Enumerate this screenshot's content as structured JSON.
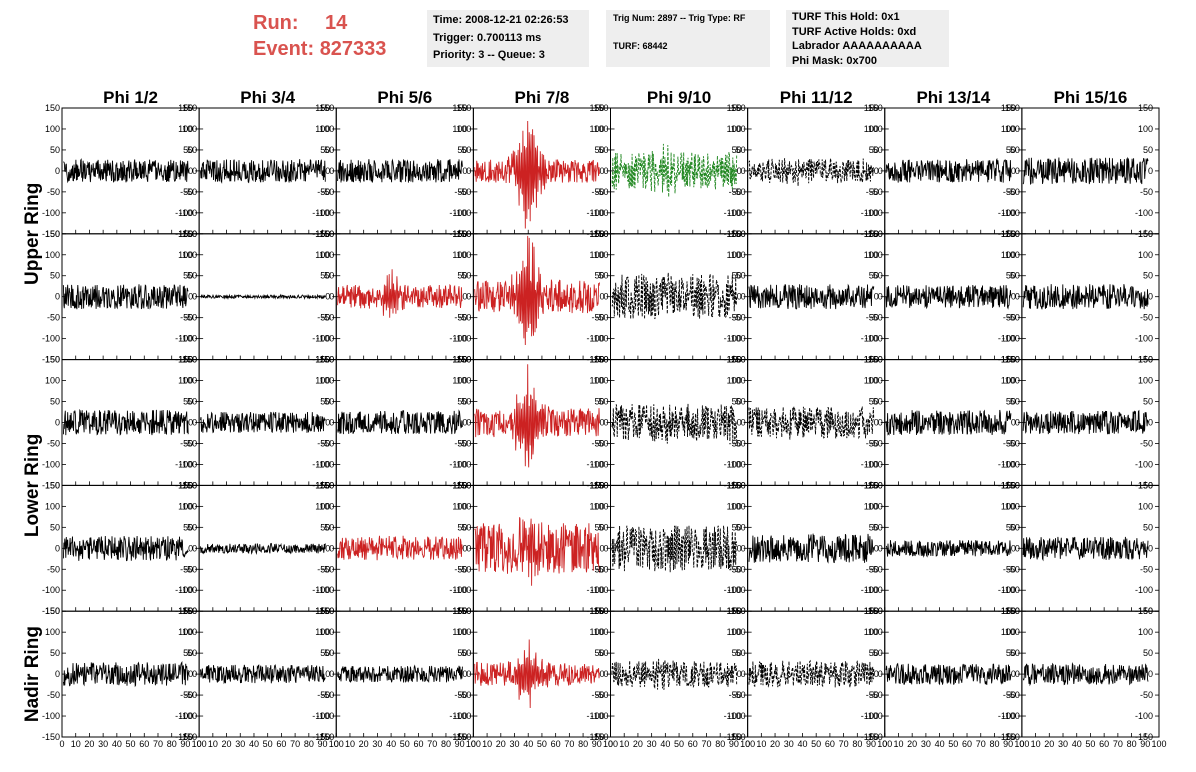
{
  "header": {
    "run_label": "Run:",
    "run_value": "14",
    "event_label": "Event:",
    "event_value": "827333"
  },
  "info_time": {
    "line1": "Time: 2008-12-21 02:26:53",
    "line2": "Trigger: 0.700113 ms",
    "line3": "Priority: 3 -- Queue: 3"
  },
  "info_trig": {
    "line1": "Trig Num: 2897 -- Trig Type: RF",
    "line2": "TURF: 68442"
  },
  "info_turf": {
    "line1": "TURF This Hold: 0x1",
    "line2": "TURF Active Holds: 0xd",
    "line3": "Labrador AAAAAAAAAA",
    "line4": "Phi Mask: 0x700"
  },
  "colors": {
    "normal": "#000000",
    "triggered": "#cc2222",
    "masked": "#228822",
    "highlight_text": "#d9534f"
  },
  "chart_data": {
    "type": "line",
    "columns": [
      "Phi 1/2",
      "Phi 3/4",
      "Phi 5/6",
      "Phi 7/8",
      "Phi 9/10",
      "Phi 11/12",
      "Phi 13/14",
      "Phi 15/16"
    ],
    "ring_labels": [
      {
        "label": "Upper Ring",
        "rows": [
          0,
          1
        ]
      },
      {
        "label": "Lower Ring",
        "rows": [
          2,
          3
        ]
      },
      {
        "label": "Nadir Ring",
        "rows": [
          4
        ]
      }
    ],
    "xlim": [
      0,
      100
    ],
    "ylim": [
      -150,
      150
    ],
    "x_ticks": [
      "0",
      "10",
      "20",
      "30",
      "40",
      "50",
      "60",
      "70",
      "80",
      "90",
      "100"
    ],
    "y_ticks": [
      "150",
      "100",
      "50",
      "0",
      "-50",
      "-100",
      "-150"
    ],
    "traces": [
      [
        {
          "style": "normal",
          "amp": 28,
          "burst": 0
        },
        {
          "style": "normal",
          "amp": 28,
          "burst": 0
        },
        {
          "style": "normal",
          "amp": 28,
          "burst": 0
        },
        {
          "style": "triggered",
          "amp": 28,
          "burst": 130
        },
        {
          "style": "masked",
          "amp": 45,
          "burst": 40
        },
        {
          "style": "dashed",
          "amp": 30,
          "burst": 10
        },
        {
          "style": "normal",
          "amp": 28,
          "burst": 0
        },
        {
          "style": "normal",
          "amp": 32,
          "burst": 0
        }
      ],
      [
        {
          "style": "normal",
          "amp": 30,
          "burst": 0
        },
        {
          "style": "normal",
          "amp": 4,
          "burst": 0
        },
        {
          "style": "triggered",
          "amp": 28,
          "burst": 50
        },
        {
          "style": "triggered",
          "amp": 40,
          "burst": 140
        },
        {
          "style": "dashed",
          "amp": 55,
          "burst": 10
        },
        {
          "style": "normal",
          "amp": 30,
          "burst": 0
        },
        {
          "style": "normal",
          "amp": 28,
          "burst": 0
        },
        {
          "style": "normal",
          "amp": 30,
          "burst": 0
        }
      ],
      [
        {
          "style": "normal",
          "amp": 30,
          "burst": 0
        },
        {
          "style": "normal",
          "amp": 25,
          "burst": 0
        },
        {
          "style": "normal",
          "amp": 28,
          "burst": 0
        },
        {
          "style": "triggered",
          "amp": 35,
          "burst": 110
        },
        {
          "style": "dashed",
          "amp": 45,
          "burst": 10
        },
        {
          "style": "dashed",
          "amp": 38,
          "burst": 10
        },
        {
          "style": "normal",
          "amp": 30,
          "burst": 0
        },
        {
          "style": "normal",
          "amp": 28,
          "burst": 0
        }
      ],
      [
        {
          "style": "normal",
          "amp": 30,
          "burst": 0
        },
        {
          "style": "normal",
          "amp": 12,
          "burst": 0
        },
        {
          "style": "triggered",
          "amp": 28,
          "burst": 10
        },
        {
          "style": "triggered",
          "amp": 60,
          "burst": 70
        },
        {
          "style": "dashed",
          "amp": 55,
          "burst": 10
        },
        {
          "style": "normal",
          "amp": 35,
          "burst": 0
        },
        {
          "style": "normal",
          "amp": 20,
          "burst": 0
        },
        {
          "style": "normal",
          "amp": 28,
          "burst": 0
        }
      ],
      [
        {
          "style": "normal",
          "amp": 28,
          "burst": 0
        },
        {
          "style": "normal",
          "amp": 22,
          "burst": 0
        },
        {
          "style": "normal",
          "amp": 20,
          "burst": 0
        },
        {
          "style": "triggered",
          "amp": 28,
          "burst": 80
        },
        {
          "style": "dashed",
          "amp": 32,
          "burst": 10
        },
        {
          "style": "dashed",
          "amp": 32,
          "burst": 10
        },
        {
          "style": "normal",
          "amp": 25,
          "burst": 0
        },
        {
          "style": "normal",
          "amp": 25,
          "burst": 0
        }
      ]
    ]
  }
}
